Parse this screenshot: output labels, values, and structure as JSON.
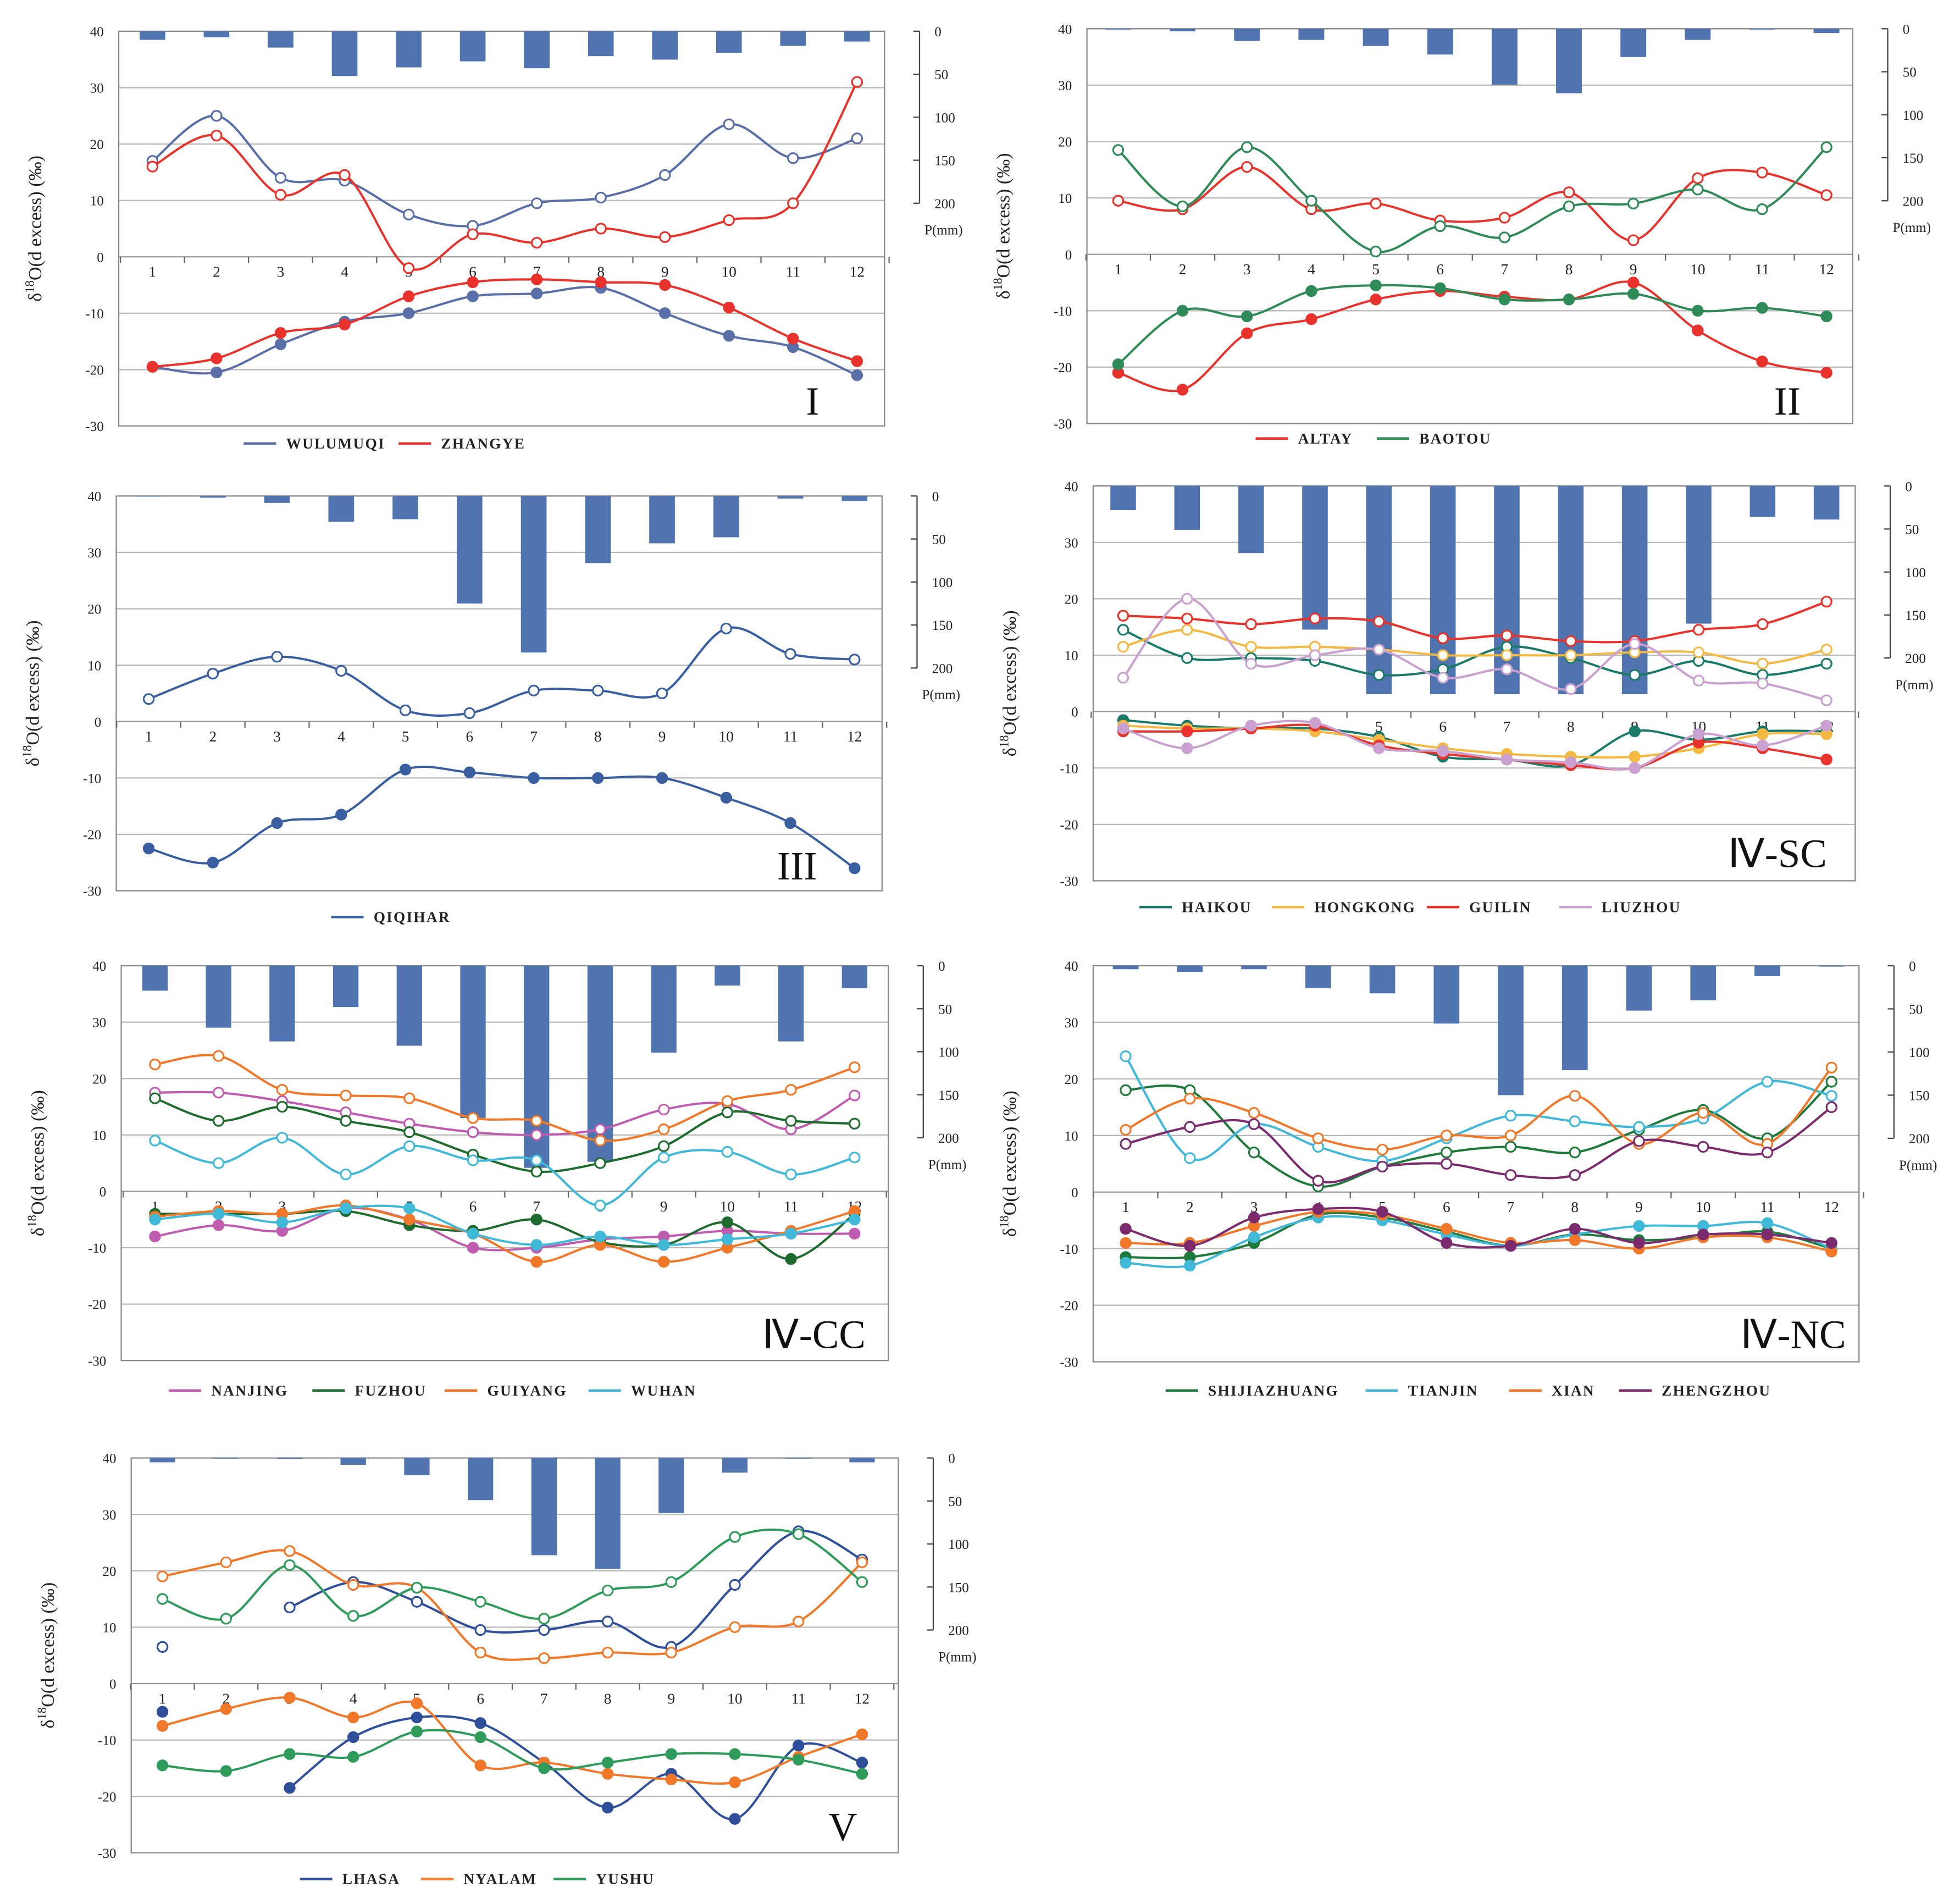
{
  "chart_data": [
    {
      "type": "line",
      "panel": "I",
      "title": "I",
      "ylabel": {
        "prefix": "δ",
        "sup": "18",
        "suffix": "O(d excess) (‰)"
      },
      "y2label": "P(mm)",
      "ylim": [
        -30,
        40
      ],
      "yticks": [
        40,
        30,
        20,
        10,
        0,
        -10,
        -20,
        -30
      ],
      "y2ticks": [
        0,
        50,
        100,
        150,
        200
      ],
      "months": [
        1,
        2,
        3,
        4,
        5,
        6,
        7,
        8,
        9,
        10,
        11,
        12
      ],
      "precip_mm": [
        10,
        7,
        19,
        52,
        42,
        35,
        43,
        29,
        33,
        25,
        17,
        12
      ],
      "stations": [
        {
          "name": "WULUMUQI",
          "color": "#5a6fa8",
          "d_excess": [
            17,
            25,
            14,
            13.5,
            7.5,
            5.5,
            9.5,
            10.5,
            14.5,
            23.5,
            17.5,
            21
          ],
          "d18O": [
            -19.5,
            -20.5,
            -15.5,
            -11.5,
            -10,
            -7,
            -6.5,
            -5.5,
            -10,
            -14,
            -16,
            -21
          ]
        },
        {
          "name": "ZHANGYE",
          "color": "#e8322b",
          "d_excess": [
            16,
            21.5,
            11,
            14.5,
            -2,
            4,
            2.5,
            5,
            3.5,
            6.5,
            9.5,
            31
          ],
          "d18O": [
            -19.5,
            -18,
            -13.5,
            -12,
            -7,
            -4.5,
            -4,
            -4.5,
            -5,
            -9,
            -14.5,
            -18.5
          ]
        }
      ]
    },
    {
      "type": "line",
      "panel": "II",
      "title": "II",
      "ylabel": {
        "prefix": "δ",
        "sup": "18",
        "suffix": "O(d excess) (‰)"
      },
      "y2label": "P(mm)",
      "ylim": [
        -30,
        40
      ],
      "yticks": [
        40,
        30,
        20,
        10,
        0,
        -10,
        -20,
        -30
      ],
      "y2ticks": [
        0,
        50,
        100,
        150,
        200
      ],
      "months": [
        1,
        2,
        3,
        4,
        5,
        6,
        7,
        8,
        9,
        10,
        11,
        12
      ],
      "precip_mm": [
        1,
        3,
        14,
        13,
        20,
        30,
        65,
        75,
        33,
        13,
        1,
        5
      ],
      "stations": [
        {
          "name": "ALTAY",
          "color": "#e8322b",
          "d_excess": [
            9.5,
            8,
            15.5,
            8,
            9,
            6,
            6.5,
            11,
            2.5,
            13.5,
            14.5,
            10.5
          ],
          "d18O": [
            -21,
            -24,
            -14,
            -11.5,
            -8,
            -6.5,
            -7.5,
            -8,
            -5,
            -13.5,
            -19,
            -21
          ]
        },
        {
          "name": "BAOTOU",
          "color": "#2e8b57",
          "d_excess": [
            18.5,
            8.5,
            19,
            9.5,
            0.5,
            5,
            3,
            8.5,
            9,
            11.5,
            8,
            19
          ],
          "d18O": [
            -19.5,
            -10,
            -11,
            -6.5,
            -5.5,
            -6,
            -8,
            -8,
            -7,
            -10,
            -9.5,
            -11
          ]
        }
      ]
    },
    {
      "type": "line",
      "panel": "III",
      "title": "III",
      "ylabel": {
        "prefix": "δ",
        "sup": "18",
        "suffix": "O(d excess) (‰)"
      },
      "y2label": "P(mm)",
      "ylim": [
        -30,
        40
      ],
      "yticks": [
        40,
        30,
        20,
        10,
        0,
        -10,
        -20,
        -30
      ],
      "y2ticks": [
        0,
        50,
        100,
        150,
        200
      ],
      "months": [
        1,
        2,
        3,
        4,
        5,
        6,
        7,
        8,
        9,
        10,
        11,
        12
      ],
      "precip_mm": [
        0,
        2,
        8,
        30,
        27,
        125,
        182,
        78,
        55,
        48,
        3,
        6
      ],
      "stations": [
        {
          "name": "QIQIHAR",
          "color": "#3a5fa0",
          "d_excess": [
            4,
            8.5,
            11.5,
            9,
            2,
            1.5,
            5.5,
            5.5,
            5,
            16.5,
            12,
            11
          ],
          "d18O": [
            -22.5,
            -25,
            -18,
            -16.5,
            -8.5,
            -9,
            -10,
            -10,
            -10,
            -13.5,
            -18,
            -26
          ]
        }
      ]
    },
    {
      "type": "line",
      "panel": "IV-SC",
      "title": "Ⅳ-SC",
      "ylabel": {
        "prefix": "δ",
        "sup": "18",
        "suffix": "O(d excess) (‰)"
      },
      "y2label": "P(mm)",
      "ylim": [
        -30,
        40
      ],
      "yticks": [
        40,
        30,
        20,
        10,
        0,
        -10,
        -20,
        -30
      ],
      "y2ticks": [
        0,
        50,
        100,
        150,
        200
      ],
      "months": [
        1,
        2,
        3,
        4,
        5,
        6,
        7,
        8,
        9,
        10,
        11,
        12
      ],
      "precip_mm": [
        28,
        51,
        78,
        167,
        242,
        242,
        242,
        242,
        242,
        160,
        36,
        39
      ],
      "stations": [
        {
          "name": "HAIKOU",
          "color": "#1a7a6a",
          "d_excess": [
            14.5,
            9.5,
            9.5,
            9,
            6.5,
            7.5,
            11.5,
            9.5,
            6.5,
            9,
            6.5,
            8.5
          ],
          "d18O": [
            -1.5,
            -2.5,
            -3,
            -3,
            -4.5,
            -8,
            -8.5,
            -9.5,
            -3.5,
            -5,
            -3.5,
            -3.5
          ]
        },
        {
          "name": "HONGKONG",
          "color": "#f4b942",
          "d_excess": [
            11.5,
            14.5,
            11.5,
            11.5,
            11,
            10,
            10,
            10,
            10.5,
            10.5,
            8.5,
            11
          ],
          "d18O": [
            -2.5,
            -3,
            -3,
            -3.5,
            -5,
            -6.5,
            -7.5,
            -8,
            -8,
            -6.5,
            -4,
            -4
          ]
        },
        {
          "name": "GUILIN",
          "color": "#e8322b",
          "d_excess": [
            17,
            16.5,
            15.5,
            16.5,
            16,
            13,
            13.5,
            12.5,
            12.5,
            14.5,
            15.5,
            19.5
          ],
          "d18O": [
            -3.5,
            -3.5,
            -3,
            -2.5,
            -6,
            -7.5,
            -8.5,
            -9.5,
            -10,
            -5.5,
            -6.5,
            -8.5
          ]
        },
        {
          "name": "LIUZHOU",
          "color": "#c9a0d0",
          "d_excess": [
            6,
            20,
            8.5,
            10,
            11,
            6,
            7.5,
            4,
            12,
            5.5,
            5,
            2
          ],
          "d18O": [
            -3,
            -6.5,
            -2.5,
            -2,
            -6.5,
            -7,
            -8.5,
            -9,
            -10,
            -4,
            -6,
            -2.5
          ]
        }
      ]
    },
    {
      "type": "line",
      "panel": "IV-CC",
      "title": "Ⅳ-CC",
      "ylabel": {
        "prefix": "δ",
        "sup": "18",
        "suffix": "O(d excess) (‰)"
      },
      "y2label": "P(mm)",
      "ylim": [
        -30,
        40
      ],
      "yticks": [
        40,
        30,
        20,
        10,
        0,
        -10,
        -20,
        -30
      ],
      "y2ticks": [
        0,
        50,
        100,
        150,
        200
      ],
      "months": [
        1,
        2,
        3,
        4,
        5,
        6,
        7,
        8,
        9,
        10,
        11,
        12
      ],
      "precip_mm": [
        29,
        72,
        88,
        48,
        93,
        177,
        235,
        228,
        101,
        23,
        88,
        26
      ],
      "stations": [
        {
          "name": "NANJING",
          "color": "#c05cb0",
          "d_excess": [
            17.5,
            17.5,
            16,
            14,
            12,
            10.5,
            10,
            11,
            14.5,
            15.5,
            11,
            17
          ],
          "d18O": [
            -8,
            -6,
            -7,
            -3,
            -5,
            -10,
            -10,
            -8.5,
            -8,
            -7,
            -7.5,
            -7.5
          ]
        },
        {
          "name": "FUZHOU",
          "color": "#1e6b2e",
          "d_excess": [
            16.5,
            12.5,
            15,
            12.5,
            10.5,
            6.5,
            3.5,
            5,
            8,
            14,
            12.5,
            12
          ],
          "d18O": [
            -4,
            -4,
            -4,
            -3.5,
            -6,
            -7,
            -5,
            -9,
            -9.5,
            -5.5,
            -12,
            -4
          ]
        },
        {
          "name": "GUIYANG",
          "color": "#f07828",
          "d_excess": [
            22.5,
            24,
            18,
            17,
            16.5,
            13,
            12.5,
            9,
            11,
            16,
            18,
            22
          ],
          "d18O": [
            -4.5,
            -3.5,
            -4,
            -2.5,
            -5,
            -7.5,
            -12.5,
            -9.5,
            -12.5,
            -10,
            -7,
            -3.5
          ]
        },
        {
          "name": "WUHAN",
          "color": "#40b8d8",
          "d_excess": [
            9,
            5,
            9.5,
            3,
            8,
            5.5,
            5.5,
            -2.5,
            6,
            7,
            3,
            6
          ],
          "d18O": [
            -5,
            -4,
            -5.5,
            -3,
            -3,
            -7.5,
            -9.5,
            -8,
            -9.5,
            -8.5,
            -7.5,
            -5
          ]
        }
      ]
    },
    {
      "type": "line",
      "panel": "IV-NC",
      "title": "Ⅳ-NC",
      "ylabel": {
        "prefix": "δ",
        "sup": "18",
        "suffix": "O(d excess) (‰)"
      },
      "y2label": "P(mm)",
      "ylim": [
        -30,
        40
      ],
      "yticks": [
        40,
        30,
        20,
        10,
        0,
        -10,
        -20,
        -30
      ],
      "y2ticks": [
        0,
        50,
        100,
        150,
        200
      ],
      "months": [
        1,
        2,
        3,
        4,
        5,
        6,
        7,
        8,
        9,
        10,
        11,
        12
      ],
      "precip_mm": [
        4,
        7,
        4,
        26,
        32,
        67,
        150,
        121,
        52,
        40,
        12,
        1
      ],
      "stations": [
        {
          "name": "SHIJIAZHUANG",
          "color": "#1e7a3a",
          "d_excess": [
            18,
            18,
            7,
            1,
            4.5,
            7,
            8,
            7,
            11,
            14.5,
            9.5,
            19.5
          ],
          "d18O": [
            -11.5,
            -11.5,
            -9,
            -4,
            -4.5,
            -7,
            -9.5,
            -7.5,
            -8.5,
            -8,
            -7,
            -10
          ]
        },
        {
          "name": "TIANJIN",
          "color": "#40b8d8",
          "d_excess": [
            24,
            6,
            12,
            8,
            5.5,
            9.5,
            13.5,
            12.5,
            11.5,
            13,
            19.5,
            17
          ],
          "d18O": [
            -12.5,
            -13,
            -8,
            -4.5,
            -5,
            -7.5,
            -9.5,
            -7.5,
            -6,
            -6,
            -5.5,
            -10
          ]
        },
        {
          "name": "XIAN",
          "color": "#f07828",
          "d_excess": [
            11,
            16.5,
            14,
            9.5,
            7.5,
            10,
            10,
            17,
            8.5,
            14,
            8.5,
            22
          ],
          "d18O": [
            -9,
            -9,
            -6,
            -3.5,
            -4,
            -6.5,
            -9,
            -8.5,
            -10,
            -8,
            -8,
            -10.5
          ]
        },
        {
          "name": "ZHENGZHOU",
          "color": "#7b2a6e",
          "d_excess": [
            8.5,
            11.5,
            12,
            2,
            4.5,
            5,
            3,
            3,
            9,
            8,
            7,
            15
          ],
          "d18O": [
            -6.5,
            -9.5,
            -4.5,
            -3,
            -3.5,
            -9,
            -9.5,
            -6.5,
            -9,
            -7.5,
            -7.5,
            -9
          ]
        }
      ]
    },
    {
      "type": "line",
      "panel": "V",
      "title": "V",
      "ylabel": {
        "prefix": "δ",
        "sup": "18",
        "suffix": "O(d excess) (‰)"
      },
      "y2label": "P(mm)",
      "ylim": [
        -30,
        40
      ],
      "yticks": [
        40,
        30,
        20,
        10,
        0,
        -10,
        -20,
        -30
      ],
      "y2ticks": [
        0,
        50,
        100,
        150,
        200
      ],
      "months": [
        1,
        2,
        3,
        4,
        5,
        6,
        7,
        8,
        9,
        10,
        11,
        12
      ],
      "precip_mm": [
        5,
        0,
        1,
        8,
        20,
        49,
        113,
        129,
        64,
        17,
        0,
        5
      ],
      "stations": [
        {
          "name": "LHASA",
          "color": "#2f4f9a",
          "d_excess": [
            6.5,
            null,
            13.5,
            18,
            14.5,
            9.5,
            9.5,
            11,
            6.5,
            17.5,
            27,
            22
          ],
          "d18O": [
            -5,
            null,
            -18.5,
            -9.5,
            -6,
            -7,
            -14,
            -22,
            -16,
            -24,
            -11,
            -14
          ]
        },
        {
          "name": "NYALAM",
          "color": "#f07828",
          "d_excess": [
            19,
            21.5,
            23.5,
            17.5,
            17,
            5.5,
            4.5,
            5.5,
            5.5,
            10,
            11,
            21.5
          ],
          "d18O": [
            -7.5,
            -4.5,
            -2.5,
            -6,
            -3.5,
            -14.5,
            -14,
            -16,
            -17,
            -17.5,
            -13,
            -9
          ]
        },
        {
          "name": "YUSHU",
          "color": "#2e9b5a",
          "d_excess": [
            15,
            11.5,
            21,
            12,
            17,
            14.5,
            11.5,
            16.5,
            18,
            26,
            26.5,
            18
          ],
          "d18O": [
            -14.5,
            -15.5,
            -12.5,
            -13,
            -8.5,
            -9.5,
            -15,
            -14,
            -12.5,
            -12.5,
            -13.5,
            -16
          ]
        }
      ]
    }
  ],
  "colors": {
    "bars": "#4f74b0",
    "grid": "#b8b8b8",
    "frame": "#888888"
  }
}
